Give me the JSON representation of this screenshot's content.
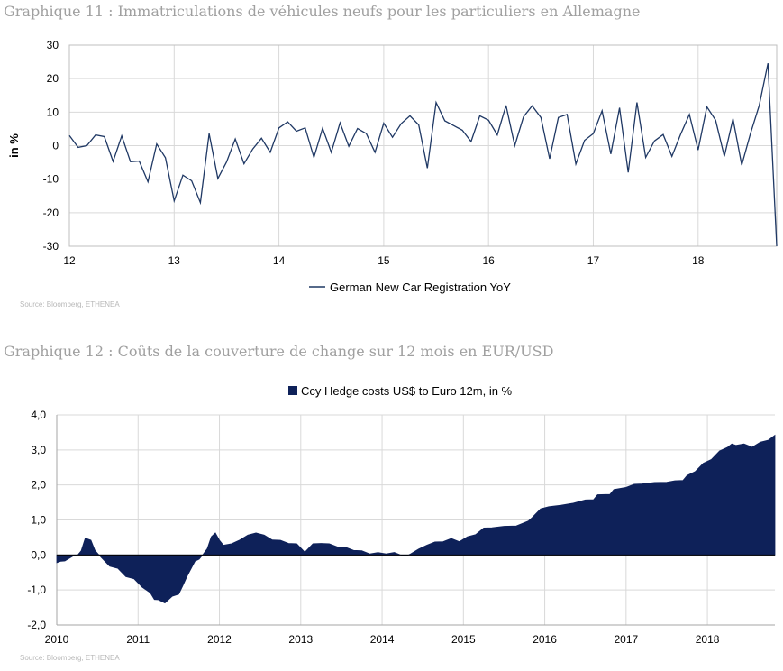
{
  "chart1": {
    "title": "Graphique 11 : Immatriculations de véhicules neufs pour les particuliers en Allemagne",
    "source": "Source: Bloomberg, ETHENEA",
    "line_color": "#1f3864",
    "chart_data": {
      "type": "line",
      "title": "Graphique 11 : Immatriculations de véhicules neufs pour les particuliers en Allemagne",
      "xlabel": "",
      "ylabel": "in %",
      "x_ticks": [
        "12",
        "13",
        "14",
        "15",
        "16",
        "17",
        "18"
      ],
      "x_range": [
        2012,
        2018.75
      ],
      "ylim": [
        -30,
        30
      ],
      "y_ticks": [
        30,
        20,
        10,
        0,
        -10,
        -20,
        -30
      ],
      "grid": true,
      "legend_position": "bottom-center",
      "series": [
        {
          "name": "German New Car Registration YoY",
          "values": [
            3,
            -0.5,
            0,
            3.2,
            2.7,
            -4.7,
            2.9,
            -4.8,
            -4.6,
            -10.8,
            0.5,
            -3.6,
            -16.5,
            -8.8,
            -10.5,
            -17,
            3.6,
            -9.8,
            -4.9,
            2,
            -5.4,
            -1,
            2.2,
            -2,
            5.3,
            7.1,
            4.3,
            5.3,
            -3.5,
            5.2,
            -2,
            6.8,
            -0.2,
            5.1,
            3.6,
            -2,
            6.7,
            2.5,
            6.6,
            8.9,
            6.2,
            -6.7,
            12.9,
            7.4,
            6,
            4.6,
            1.2,
            8.9,
            7.6,
            3.2,
            12,
            0,
            8.6,
            11.9,
            8.4,
            -3.9,
            8.4,
            9.3,
            -5.5,
            1.6,
            3.6,
            10.4,
            -2.5,
            11.3,
            -8,
            12.9,
            -3.5,
            1.4,
            3.3,
            -3.2,
            3.4,
            9.3,
            -1.3,
            11.6,
            7.6,
            -3.2,
            8,
            -5.8,
            3.6,
            12,
            24.6,
            -30
          ]
        }
      ]
    }
  },
  "chart2": {
    "title": "Graphique 12 : Coûts de la couverture de change sur 12 mois en EUR/USD",
    "source": "Source: Bloomberg, ETHENEA",
    "fill_color": "#0e2159",
    "chart_data": {
      "type": "area",
      "title": "Graphique 12 : Coûts de la couverture de change sur 12 mois en EUR/USD",
      "xlabel": "",
      "ylabel": "",
      "x_ticks": [
        "2010",
        "2011",
        "2012",
        "2013",
        "2014",
        "2015",
        "2016",
        "2017",
        "2018"
      ],
      "x_range": [
        2010,
        2018.83
      ],
      "ylim": [
        -2.0,
        4.0
      ],
      "y_ticks": [
        "4,0",
        "3,0",
        "2,0",
        "1,0",
        "0,0",
        "-1,0",
        "-2,0"
      ],
      "grid": true,
      "legend_position": "top-center",
      "series": [
        {
          "name": "Ccy Hedge costs US$ to Euro 12m, in %",
          "x": [
            2010,
            2010.05,
            2010.1,
            2010.2,
            2010.25,
            2010.3,
            2010.35,
            2010.42,
            2010.47,
            2010.55,
            2010.65,
            2010.75,
            2010.85,
            2010.95,
            2011.05,
            2011.15,
            2011.2,
            2011.25,
            2011.33,
            2011.42,
            2011.5,
            2011.55,
            2011.6,
            2011.7,
            2011.75,
            2011.8,
            2011.85,
            2011.9,
            2011.95,
            2012.0,
            2012.05,
            2012.15,
            2012.25,
            2012.35,
            2012.45,
            2012.55,
            2012.65,
            2012.75,
            2012.85,
            2012.95,
            2013.05,
            2013.15,
            2013.25,
            2013.35,
            2013.45,
            2013.55,
            2013.65,
            2013.75,
            2013.85,
            2013.95,
            2014.05,
            2014.15,
            2014.25,
            2014.3,
            2014.35,
            2014.45,
            2014.55,
            2014.65,
            2014.75,
            2014.85,
            2014.95,
            2015.05,
            2015.15,
            2015.25,
            2015.35,
            2015.5,
            2015.65,
            2015.8,
            2015.85,
            2015.95,
            2016.05,
            2016.2,
            2016.35,
            2016.5,
            2016.6,
            2016.65,
            2016.8,
            2016.85,
            2017.0,
            2017.1,
            2017.2,
            2017.35,
            2017.5,
            2017.6,
            2017.7,
            2017.75,
            2017.85,
            2017.95,
            2018.05,
            2018.15,
            2018.25,
            2018.3,
            2018.35,
            2018.45,
            2018.55,
            2018.65,
            2018.75,
            2018.83
          ],
          "values": [
            -0.2,
            -0.2,
            -0.15,
            -0.05,
            0,
            0.1,
            0.5,
            0.4,
            0.15,
            -0.1,
            -0.3,
            -0.4,
            -0.6,
            -0.7,
            -0.9,
            -1.1,
            -1.25,
            -1.3,
            -1.35,
            -1.2,
            -1.1,
            -0.9,
            -0.6,
            -0.2,
            -0.1,
            0,
            0.2,
            0.5,
            0.65,
            0.4,
            0.3,
            0.3,
            0.45,
            0.55,
            0.65,
            0.55,
            0.45,
            0.4,
            0.35,
            0.3,
            0.1,
            0.3,
            0.35,
            0.3,
            0.25,
            0.2,
            0.15,
            0.1,
            0.05,
            0.05,
            0.05,
            0.05,
            0,
            -0.05,
            0.05,
            0.15,
            0.3,
            0.35,
            0.4,
            0.45,
            0.4,
            0.5,
            0.6,
            0.75,
            0.8,
            0.8,
            0.85,
            0.95,
            1.1,
            1.3,
            1.4,
            1.4,
            1.5,
            1.55,
            1.6,
            1.7,
            1.75,
            1.85,
            1.95,
            2.0,
            2.05,
            2.05,
            2.1,
            2.1,
            2.15,
            2.25,
            2.4,
            2.6,
            2.75,
            2.95,
            3.1,
            3.15,
            3.15,
            3.15,
            3.1,
            3.2,
            3.3,
            3.4
          ]
        }
      ]
    }
  }
}
